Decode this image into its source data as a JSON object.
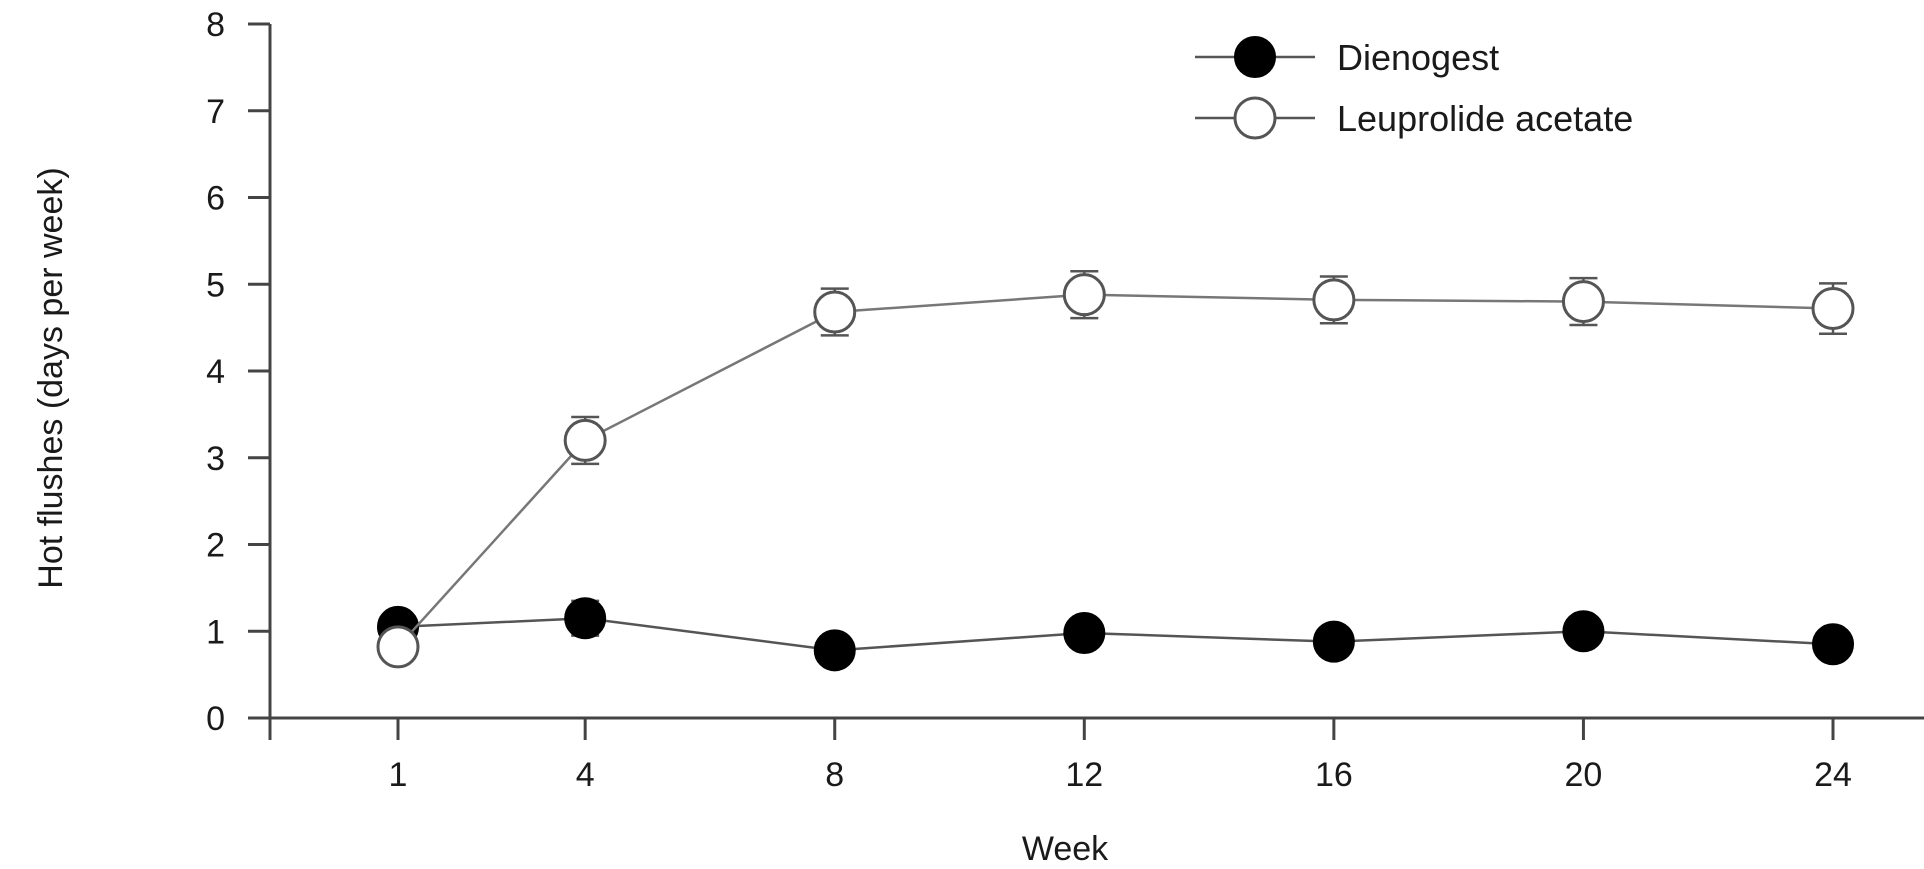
{
  "chart_data": {
    "type": "line",
    "title": "",
    "xlabel": "Week",
    "ylabel": "Hot flushes (days per week)",
    "x": [
      1,
      4,
      8,
      12,
      16,
      20,
      24
    ],
    "x_tick_labels": [
      "1",
      "4",
      "8",
      "12",
      "16",
      "20",
      "24"
    ],
    "ylim": [
      0,
      8
    ],
    "y_ticks": [
      0,
      1,
      2,
      3,
      4,
      5,
      6,
      7,
      8
    ],
    "y_tick_labels": [
      "0",
      "1",
      "2",
      "3",
      "4",
      "5",
      "6",
      "7",
      "8"
    ],
    "grid": false,
    "legend_position": "top-right",
    "series": [
      {
        "name": "Dienogest",
        "marker": "filled-circle",
        "color": "#000000",
        "values": [
          1.05,
          1.15,
          0.78,
          0.98,
          0.88,
          1.0,
          0.85
        ],
        "error": [
          0.12,
          0.2,
          0.1,
          0.15,
          0.13,
          0.16,
          0.13
        ]
      },
      {
        "name": "Leuprolide acetate",
        "marker": "open-circle",
        "color": "#ffffff",
        "values": [
          0.82,
          3.2,
          4.68,
          4.88,
          4.82,
          4.8,
          4.72
        ],
        "error": [
          0.0,
          0.27,
          0.27,
          0.27,
          0.27,
          0.27,
          0.29
        ]
      }
    ]
  }
}
